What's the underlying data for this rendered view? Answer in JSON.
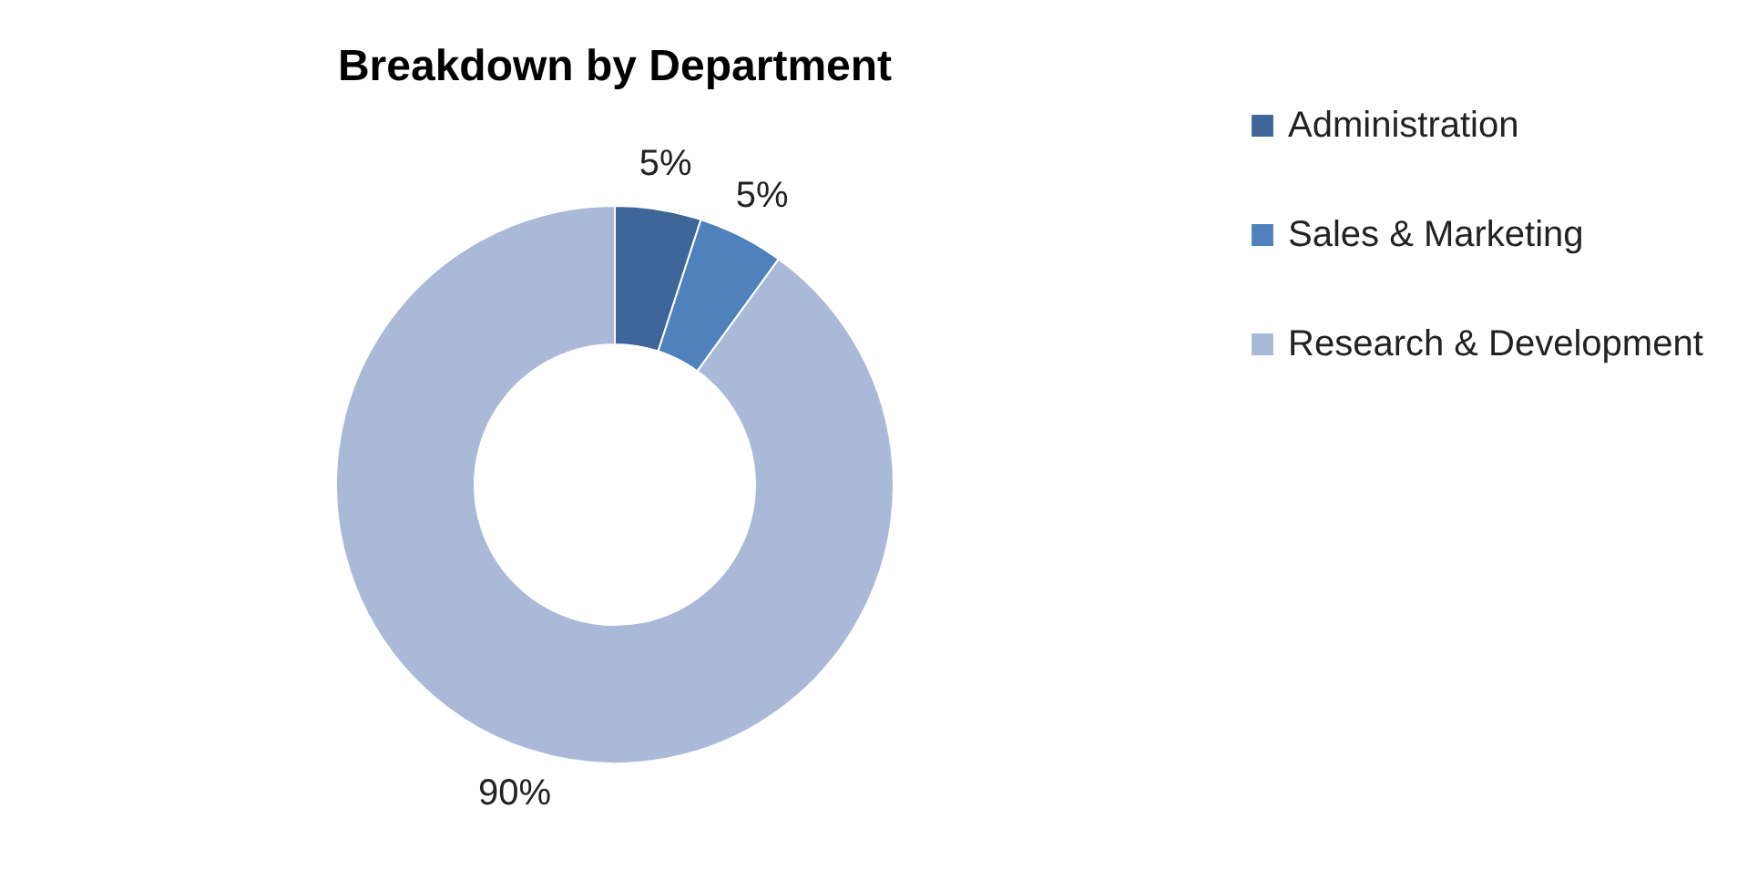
{
  "chart_data": {
    "type": "donut",
    "title": "Breakdown by Department",
    "categories": [
      "Administration",
      "Sales & Marketing",
      "Research & Development"
    ],
    "values": [
      5,
      5,
      90
    ],
    "colors": [
      "#3e6698",
      "#4f81bd",
      "#aab9d8"
    ],
    "value_labels": [
      "5%",
      "5%",
      "90%"
    ],
    "legend": "right"
  }
}
